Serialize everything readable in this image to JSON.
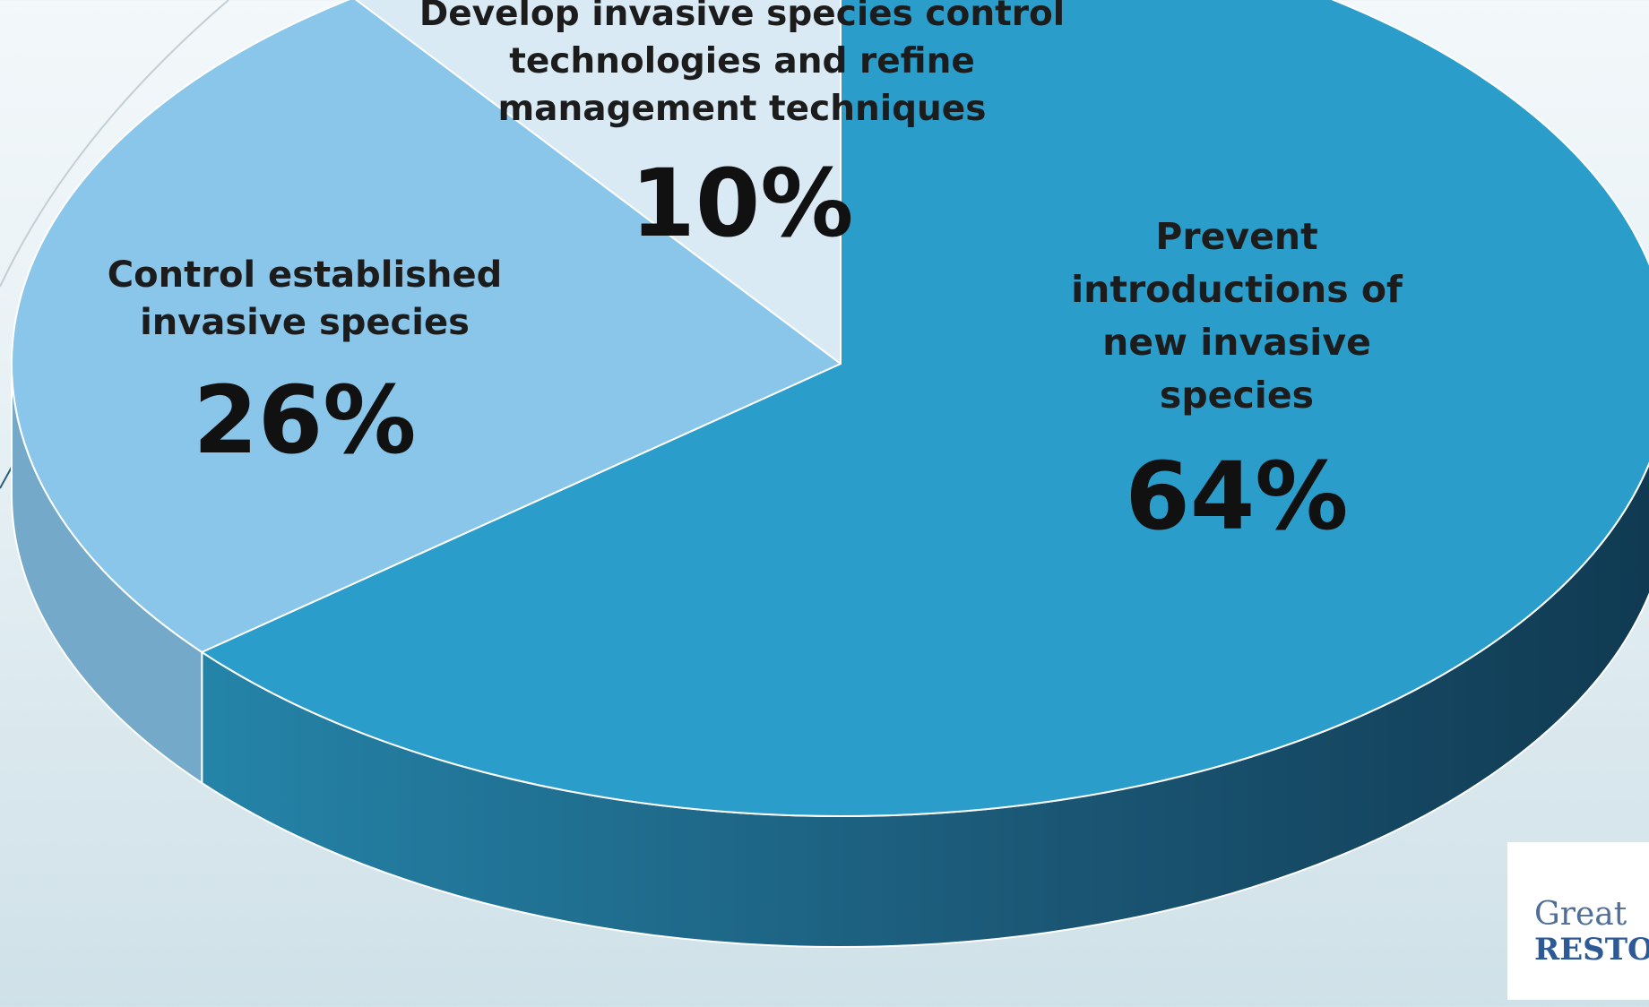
{
  "chart_data": {
    "type": "pie",
    "style": "3d",
    "slices": [
      {
        "label": "Prevent introductions of new invasive species",
        "label_lines": [
          "Prevent",
          "introductions of",
          "new invasive",
          "species"
        ],
        "value": 64,
        "value_text": "64%",
        "color": "#2b9dca"
      },
      {
        "label": "Control established invasive species",
        "label_lines": [
          "Control established",
          "invasive species"
        ],
        "value": 26,
        "value_text": "26%",
        "color": "#89c6e9"
      },
      {
        "label": "Develop invasive species control technologies and refine management techniques",
        "label_lines": [
          "Develop invasive species control",
          "technologies and refine",
          "management techniques"
        ],
        "value": 10,
        "value_text": "10%",
        "color": "#d9eaf5"
      }
    ]
  },
  "logo": {
    "line1": "Great",
    "line2": "RESTO"
  }
}
